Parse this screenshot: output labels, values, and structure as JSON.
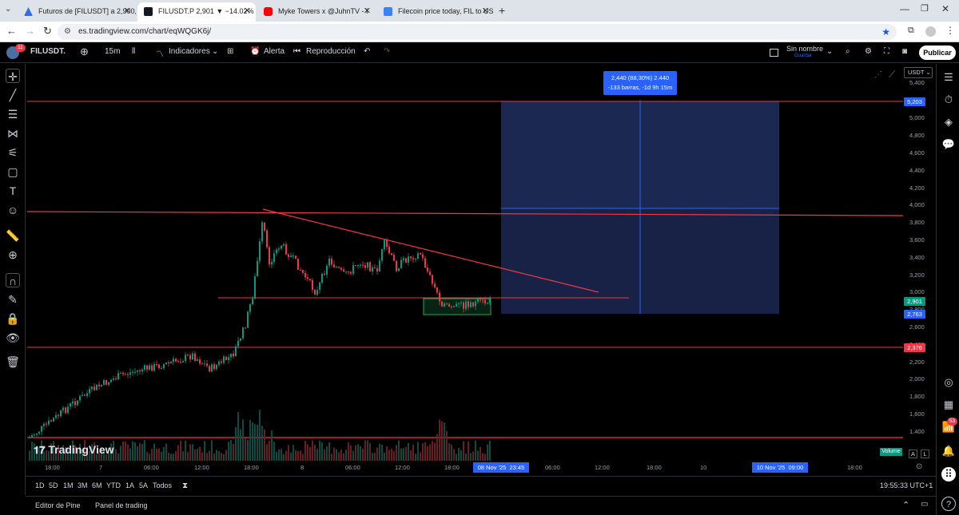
{
  "browser": {
    "tabs": [
      {
        "title": "Futuros de [FILUSDT] a 2,900, c",
        "color": "#2f6fe0"
      },
      {
        "title": "FILUSDT.P 2,901 ▼ −14.02% Sin",
        "color": "#131722"
      },
      {
        "title": "Myke Towers x @JuhnTV - I",
        "color": "#ff0000"
      },
      {
        "title": "Filecoin price today, FIL to USD",
        "color": "#3b82f6"
      }
    ],
    "url": "es.tradingview.com/chart/eqWQGK6j/"
  },
  "toolbar": {
    "symbol": "FILUSDT.",
    "interval": "15m",
    "indicators": "Indicadores",
    "alert": "Alerta",
    "replay": "Reproducción",
    "layout_name": "Sin nombre",
    "layout_sub": "Guardar",
    "publish": "Publicar",
    "notif_count": "11"
  },
  "chart": {
    "currency": "USDT",
    "measure_line1": "2,440 (88,30%) 2.440",
    "measure_line2": "-133 barras, -1d 9h 15m",
    "watermark": "TradingView",
    "volume_label": "Volume",
    "y_ticks": [
      "5,400",
      "5,000",
      "4,800",
      "4,600",
      "4,400",
      "4,200",
      "4,000",
      "3,800",
      "3,600",
      "3,400",
      "3,200",
      "3,000",
      "2,800",
      "2,600",
      "2,400",
      "2,200",
      "2,000",
      "1,800",
      "1,600",
      "1,400"
    ],
    "price_tags": [
      {
        "label": "5,203",
        "color": "#2962ff"
      },
      {
        "label": "2,901",
        "color": "#089981"
      },
      {
        "label": "2,763",
        "color": "#2962ff"
      },
      {
        "label": "2,376",
        "color": "#f23645"
      }
    ],
    "x_ticks": [
      "18:00",
      "7",
      "06:00",
      "12:00",
      "18:00",
      "8",
      "06:00",
      "12:00",
      "18:00",
      "06:00",
      "12:00",
      "18:00",
      "10",
      "18:00"
    ],
    "x_highlight_1": "08 Nov '25  23:45",
    "x_highlight_2": "10 Nov '25  09:00",
    "scale_a": "A",
    "scale_l": "L"
  },
  "timeframes": [
    "1D",
    "5D",
    "1M",
    "3M",
    "6M",
    "YTD",
    "1A",
    "5A",
    "Todos"
  ],
  "clock": "19:55:33 UTC+1",
  "footer": {
    "pine": "Editor de Pine",
    "trading": "Panel de trading"
  },
  "right_badge": "53"
}
